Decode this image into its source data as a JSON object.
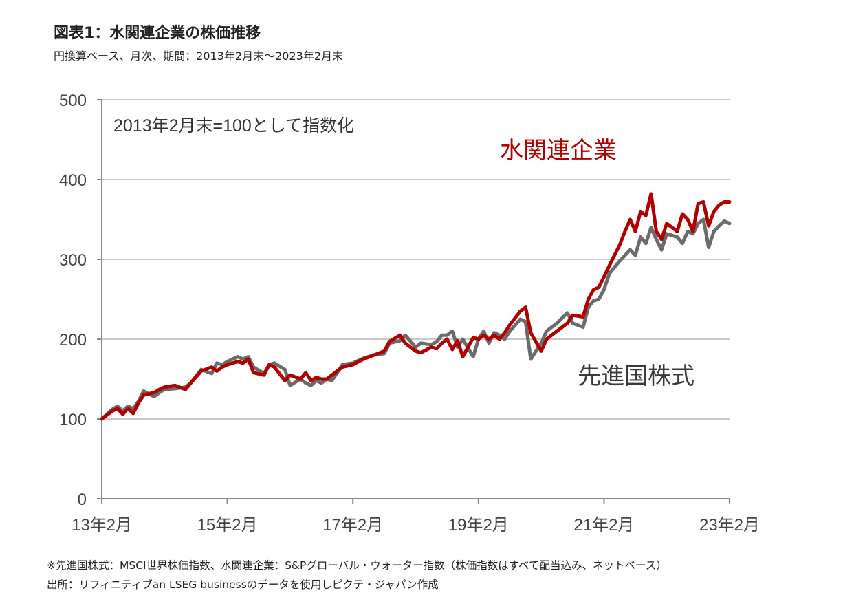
{
  "title": "図表1：水関連企業の株価推移",
  "subtitle": "円換算ベース、月次、期間：2013年2月末～2023年2月末",
  "footnotes": [
    "※先進国株式：MSCI世界株価指数、水関連企業：S&Pグローバル・ウォーター指数（株価指数はすべて配当込み、ネットベース）",
    "出所：リフィニティブan LSEG businessのデータを使用しピクテ・ジャパン作成"
  ],
  "colors": {
    "water": "#b00000",
    "developed": "#6b6b6b",
    "grid": "#c8c8c8",
    "axis": "#888888"
  },
  "chart_data": {
    "type": "line",
    "annotation": "2013年2月末=100として指数化",
    "ylim": [
      0,
      500
    ],
    "yticks": [
      0,
      100,
      200,
      300,
      400,
      500
    ],
    "xlim": [
      2013.083,
      2023.083
    ],
    "xticks": [
      {
        "x": 2013.083,
        "label": "13年2月"
      },
      {
        "x": 2015.083,
        "label": "15年2月"
      },
      {
        "x": 2017.083,
        "label": "17年2月"
      },
      {
        "x": 2019.083,
        "label": "19年2月"
      },
      {
        "x": 2021.083,
        "label": "21年2月"
      },
      {
        "x": 2023.083,
        "label": "23年2月"
      }
    ],
    "grid": true,
    "series": [
      {
        "name": "水関連企業",
        "color": "#b00000",
        "x": [
          2013.083,
          2013.25,
          2013.333,
          2013.417,
          2013.5,
          2013.583,
          2013.667,
          2013.75,
          2013.917,
          2014.0,
          2014.083,
          2014.25,
          2014.417,
          2014.5,
          2014.667,
          2014.833,
          2014.917,
          2015.0,
          2015.083,
          2015.25,
          2015.333,
          2015.417,
          2015.5,
          2015.667,
          2015.75,
          2015.833,
          2016.0,
          2016.083,
          2016.25,
          2016.333,
          2016.417,
          2016.5,
          2016.583,
          2016.667,
          2016.75,
          2016.917,
          2017.083,
          2017.25,
          2017.417,
          2017.583,
          2017.667,
          2017.833,
          2017.917,
          2018.083,
          2018.167,
          2018.333,
          2018.417,
          2018.5,
          2018.583,
          2018.667,
          2018.75,
          2018.833,
          2019.0,
          2019.083,
          2019.167,
          2019.25,
          2019.333,
          2019.417,
          2019.5,
          2019.583,
          2019.75,
          2019.833,
          2019.917,
          2020.083,
          2020.167,
          2020.333,
          2020.5,
          2020.583,
          2020.75,
          2020.833,
          2020.917,
          2021.0,
          2021.083,
          2021.167,
          2021.25,
          2021.333,
          2021.417,
          2021.5,
          2021.583,
          2021.667,
          2021.75,
          2021.833,
          2021.917,
          2022.0,
          2022.083,
          2022.167,
          2022.25,
          2022.333,
          2022.417,
          2022.5,
          2022.583,
          2022.667,
          2022.75,
          2022.833,
          2022.917,
          2023.0,
          2023.083
        ],
        "values": [
          100,
          110,
          113,
          106,
          113,
          107,
          120,
          130,
          133,
          137,
          140,
          142,
          137,
          145,
          160,
          165,
          160,
          165,
          168,
          172,
          170,
          175,
          158,
          155,
          168,
          165,
          148,
          155,
          150,
          158,
          148,
          152,
          150,
          150,
          155,
          165,
          168,
          175,
          180,
          185,
          197,
          205,
          195,
          185,
          183,
          190,
          188,
          195,
          200,
          187,
          198,
          178,
          202,
          200,
          205,
          200,
          205,
          200,
          208,
          218,
          235,
          240,
          208,
          185,
          200,
          210,
          220,
          230,
          228,
          250,
          262,
          265,
          278,
          292,
          305,
          318,
          335,
          350,
          335,
          360,
          355,
          382,
          335,
          325,
          345,
          340,
          335,
          357,
          350,
          335,
          370,
          372,
          342,
          360,
          368,
          372,
          372
        ]
      },
      {
        "name": "先進国株式",
        "color": "#6b6b6b",
        "x": [
          2013.083,
          2013.25,
          2013.333,
          2013.417,
          2013.5,
          2013.583,
          2013.667,
          2013.75,
          2013.917,
          2014.0,
          2014.083,
          2014.25,
          2014.417,
          2014.5,
          2014.667,
          2014.833,
          2014.917,
          2015.0,
          2015.083,
          2015.25,
          2015.333,
          2015.417,
          2015.5,
          2015.667,
          2015.75,
          2015.833,
          2016.0,
          2016.083,
          2016.25,
          2016.333,
          2016.417,
          2016.5,
          2016.583,
          2016.667,
          2016.75,
          2016.917,
          2017.083,
          2017.25,
          2017.417,
          2017.583,
          2017.667,
          2017.833,
          2017.917,
          2018.083,
          2018.167,
          2018.333,
          2018.417,
          2018.5,
          2018.583,
          2018.667,
          2018.75,
          2018.833,
          2019.0,
          2019.083,
          2019.167,
          2019.25,
          2019.333,
          2019.417,
          2019.5,
          2019.583,
          2019.75,
          2019.833,
          2019.917,
          2020.083,
          2020.167,
          2020.333,
          2020.5,
          2020.583,
          2020.75,
          2020.833,
          2020.917,
          2021.0,
          2021.083,
          2021.167,
          2021.25,
          2021.333,
          2021.417,
          2021.5,
          2021.583,
          2021.667,
          2021.75,
          2021.833,
          2021.917,
          2022.0,
          2022.083,
          2022.167,
          2022.25,
          2022.333,
          2022.417,
          2022.5,
          2022.583,
          2022.667,
          2022.75,
          2022.833,
          2022.917,
          2023.0,
          2023.083
        ],
        "values": [
          100,
          112,
          116,
          110,
          116,
          113,
          122,
          135,
          128,
          133,
          137,
          138,
          140,
          145,
          162,
          157,
          170,
          168,
          172,
          178,
          175,
          178,
          165,
          157,
          168,
          170,
          162,
          142,
          150,
          145,
          142,
          148,
          145,
          150,
          148,
          168,
          170,
          176,
          180,
          182,
          195,
          198,
          205,
          190,
          195,
          193,
          197,
          205,
          205,
          210,
          190,
          200,
          178,
          200,
          210,
          195,
          208,
          205,
          200,
          210,
          225,
          222,
          175,
          195,
          210,
          220,
          233,
          220,
          215,
          240,
          248,
          250,
          262,
          282,
          290,
          298,
          305,
          312,
          305,
          328,
          320,
          340,
          325,
          312,
          332,
          330,
          328,
          320,
          335,
          332,
          345,
          350,
          315,
          335,
          342,
          348,
          345
        ]
      }
    ],
    "series_labels": [
      "水関連企業",
      "先進国株式"
    ]
  }
}
